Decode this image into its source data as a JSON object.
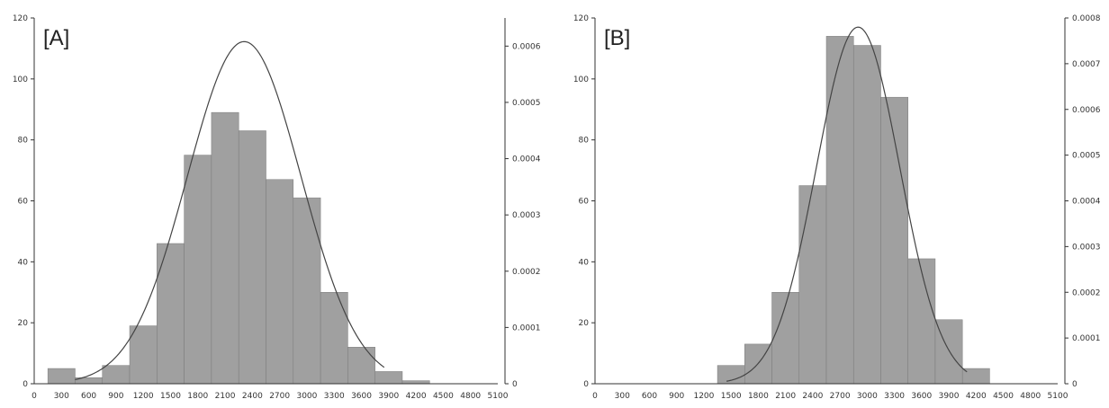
{
  "chart_data": [
    {
      "type": "bar",
      "panel_label": "[A]",
      "x_ticks": [
        0,
        300,
        600,
        900,
        1200,
        1500,
        1800,
        2100,
        2400,
        2700,
        3000,
        3300,
        3600,
        3900,
        4200,
        4500,
        4800,
        5100
      ],
      "xlim": [
        0,
        5100
      ],
      "bin_width": 300,
      "y_left_ticks": [
        0,
        20,
        40,
        60,
        80,
        100,
        120
      ],
      "y_left_lim": [
        0,
        120
      ],
      "y_right_ticks": [
        "0",
        "0.0001",
        "0.0002",
        "0.0003",
        "0.0004",
        "0.0005",
        "0.0006"
      ],
      "y_right_lim": [
        0,
        0.00065
      ],
      "histogram": {
        "bin_starts": [
          150,
          450,
          750,
          1050,
          1350,
          1650,
          1950,
          2250,
          2550,
          2850,
          3150,
          3450,
          3750,
          4050
        ],
        "values": [
          5,
          2,
          6,
          19,
          46,
          75,
          89,
          83,
          67,
          61,
          30,
          12,
          4,
          1
        ]
      },
      "density_curve": {
        "mean": 2310,
        "sd": 625,
        "peak_density": 0.000608,
        "x_range": [
          450,
          3850
        ]
      }
    },
    {
      "type": "bar",
      "panel_label": "[B]",
      "x_ticks": [
        0,
        300,
        600,
        900,
        1200,
        1500,
        1800,
        2100,
        2400,
        2700,
        3000,
        3300,
        3600,
        3900,
        4200,
        4500,
        4800,
        5100
      ],
      "xlim": [
        0,
        5100
      ],
      "bin_width": 300,
      "y_left_ticks": [
        0,
        20,
        40,
        60,
        80,
        100,
        120
      ],
      "y_left_lim": [
        0,
        120
      ],
      "y_right_ticks": [
        "0",
        "0.0001",
        "0.0002",
        "0.0003",
        "0.0004",
        "0.0005",
        "0.0006",
        "0.0007",
        "0.0008"
      ],
      "y_right_lim": [
        0,
        0.0008
      ],
      "histogram": {
        "bin_starts": [
          1350,
          1650,
          1950,
          2250,
          2550,
          2850,
          3150,
          3450,
          3750,
          4050
        ],
        "values": [
          6,
          13,
          30,
          65,
          114,
          111,
          94,
          41,
          21,
          5
        ]
      },
      "density_curve": {
        "mean": 2900,
        "sd": 460,
        "peak_density": 0.00078,
        "x_range": [
          1450,
          4100
        ]
      }
    }
  ]
}
